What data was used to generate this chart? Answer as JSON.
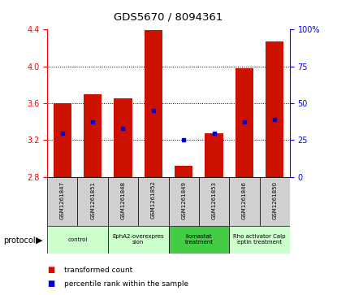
{
  "title": "GDS5670 / 8094361",
  "samples": [
    "GSM1261847",
    "GSM1261851",
    "GSM1261848",
    "GSM1261852",
    "GSM1261849",
    "GSM1261853",
    "GSM1261846",
    "GSM1261850"
  ],
  "transformed_counts": [
    3.6,
    3.7,
    3.65,
    4.39,
    2.92,
    3.27,
    3.98,
    4.27
  ],
  "percentile_ranks": [
    3.27,
    3.4,
    3.33,
    3.52,
    3.2,
    3.27,
    3.4,
    3.42
  ],
  "y_min": 2.8,
  "y_max": 4.4,
  "y_ticks_left": [
    2.8,
    3.2,
    3.6,
    4.0,
    4.4
  ],
  "y_ticks_right": [
    0,
    25,
    50,
    75,
    100
  ],
  "bar_color": "#CC1100",
  "dot_color": "#0000CC",
  "protocols": [
    {
      "label": "control",
      "start": 0,
      "end": 2,
      "color": "#ccffcc"
    },
    {
      "label": "EphA2-overexpres\nsion",
      "start": 2,
      "end": 4,
      "color": "#ccffcc"
    },
    {
      "label": "Ilomastat\ntreatment",
      "start": 4,
      "end": 6,
      "color": "#44cc44"
    },
    {
      "label": "Rho activator Calp\neptin treatment",
      "start": 6,
      "end": 8,
      "color": "#ccffcc"
    }
  ],
  "protocol_label": "protocol",
  "legend_items": [
    {
      "label": "transformed count",
      "color": "#CC1100"
    },
    {
      "label": "percentile rank within the sample",
      "color": "#0000CC"
    }
  ]
}
